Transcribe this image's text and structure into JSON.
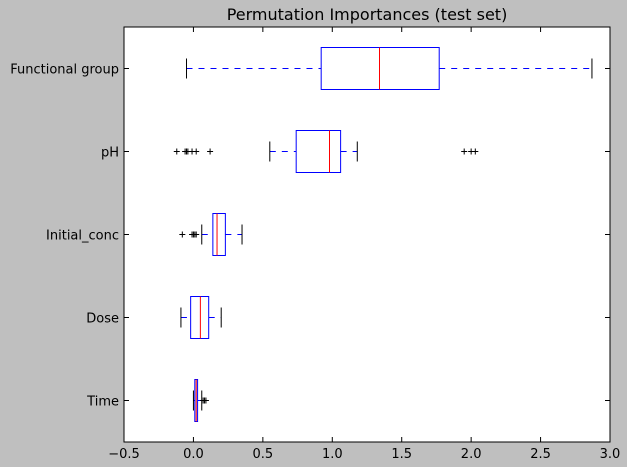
{
  "chart_data": {
    "type": "box",
    "orientation": "horizontal",
    "title": "Permutation Importances (test set)",
    "xlabel": "",
    "ylabel": "",
    "xlim": [
      -0.5,
      3.0
    ],
    "xticks": [
      "−0.5",
      "0.0",
      "0.5",
      "1.0",
      "1.5",
      "2.0",
      "2.5",
      "3.0"
    ],
    "xtick_values": [
      -0.5,
      0.0,
      0.5,
      1.0,
      1.5,
      2.0,
      2.5,
      3.0
    ],
    "grid": false,
    "colors": {
      "figure_bg": "#bfbfbf",
      "axes_bg": "#ffffff",
      "box": "#0000ff",
      "median": "#ff0000",
      "whisker": "#0000ff",
      "cap": "#000000",
      "outlier": "#000000"
    },
    "categories": [
      "Functional group",
      "pH",
      "Initial_conc",
      "Dose",
      "Time"
    ],
    "boxes": [
      {
        "label": "Functional group",
        "whislo": -0.05,
        "q1": 0.92,
        "med": 1.34,
        "q3": 1.77,
        "whishi": 2.87,
        "fliers": []
      },
      {
        "label": "pH",
        "whislo": 0.55,
        "q1": 0.74,
        "med": 0.98,
        "q3": 1.06,
        "whishi": 1.18,
        "fliers": [
          -0.12,
          -0.06,
          -0.05,
          -0.04,
          -0.01,
          0.02,
          0.12,
          1.95,
          2.0,
          2.03
        ]
      },
      {
        "label": "Initial_conc",
        "whislo": 0.06,
        "q1": 0.14,
        "med": 0.17,
        "q3": 0.23,
        "whishi": 0.35,
        "fliers": [
          -0.08,
          -0.01,
          0.0,
          0.01,
          0.02
        ]
      },
      {
        "label": "Dose",
        "whislo": -0.09,
        "q1": -0.02,
        "med": 0.05,
        "q3": 0.11,
        "whishi": 0.2,
        "fliers": []
      },
      {
        "label": "Time",
        "whislo": 0.0,
        "q1": 0.01,
        "med": 0.02,
        "q3": 0.03,
        "whishi": 0.06,
        "fliers": [
          0.07,
          0.08,
          0.09
        ]
      }
    ]
  }
}
